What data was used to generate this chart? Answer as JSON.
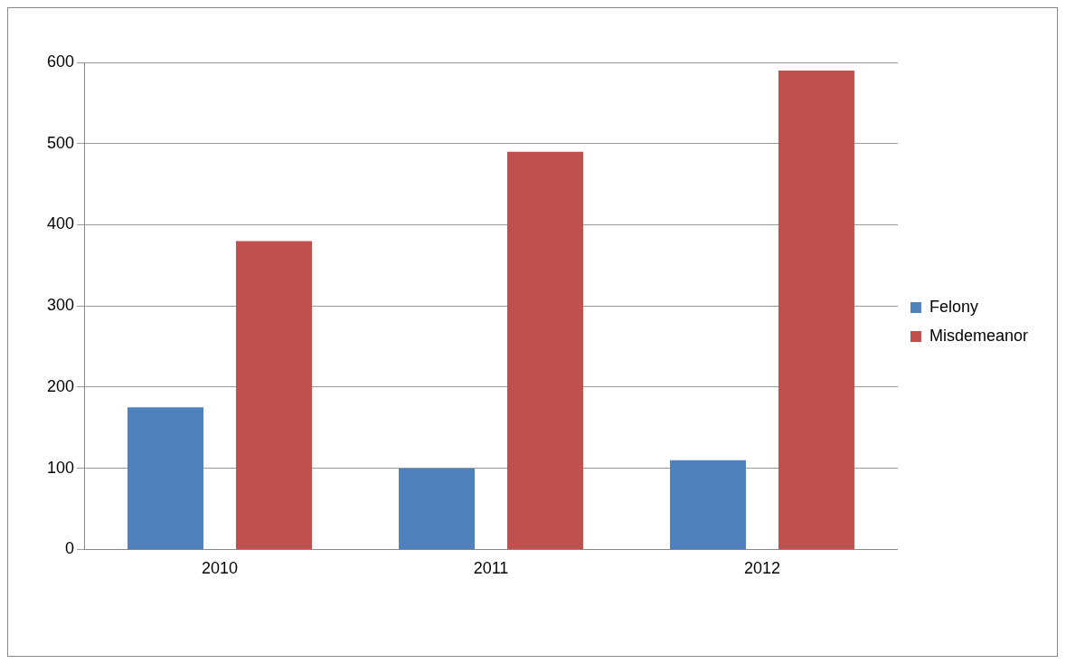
{
  "chart_data": {
    "type": "bar",
    "categories": [
      "2010",
      "2011",
      "2012"
    ],
    "series": [
      {
        "name": "Felony",
        "color": "#4f81bd",
        "values": [
          175,
          100,
          110
        ]
      },
      {
        "name": "Misdemeanor",
        "color": "#c0504d",
        "values": [
          380,
          490,
          590
        ]
      }
    ],
    "ylim": [
      0,
      600
    ],
    "yticks": [
      0,
      100,
      200,
      300,
      400,
      500,
      600
    ],
    "grid": "y",
    "legend": "right"
  }
}
